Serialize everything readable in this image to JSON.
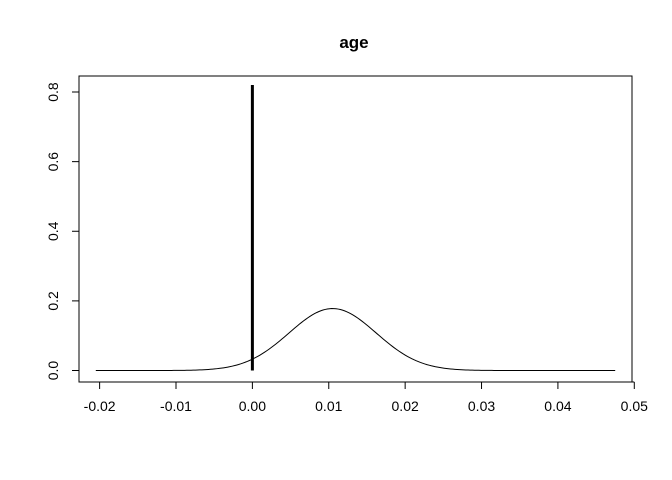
{
  "chart_data": {
    "type": "line",
    "title": "age",
    "xlabel": "",
    "ylabel": "",
    "xlim": [
      -0.0227,
      0.0497
    ],
    "ylim": [
      -0.033,
      0.846
    ],
    "x_ticks": [
      -0.02,
      -0.01,
      0.0,
      0.01,
      0.02,
      0.03,
      0.04,
      0.05
    ],
    "x_tick_labels": [
      "-0.02",
      "-0.01",
      "0.00",
      "0.01",
      "0.02",
      "0.03",
      "0.04",
      "0.05"
    ],
    "y_ticks": [
      0.0,
      0.2,
      0.4,
      0.6,
      0.8
    ],
    "y_tick_labels": [
      "0.0",
      "0.2",
      "0.4",
      "0.6",
      "0.8"
    ],
    "grid": false,
    "legend": "none",
    "series": [
      {
        "kind": "density-curve",
        "x_range": [
          -0.0205,
          0.0475
        ],
        "mean": 0.0105,
        "sd": 0.0057,
        "peak": 0.178,
        "color": "#000000"
      },
      {
        "kind": "spike",
        "x": 0.0,
        "y": 0.82,
        "color": "#000000"
      }
    ]
  }
}
